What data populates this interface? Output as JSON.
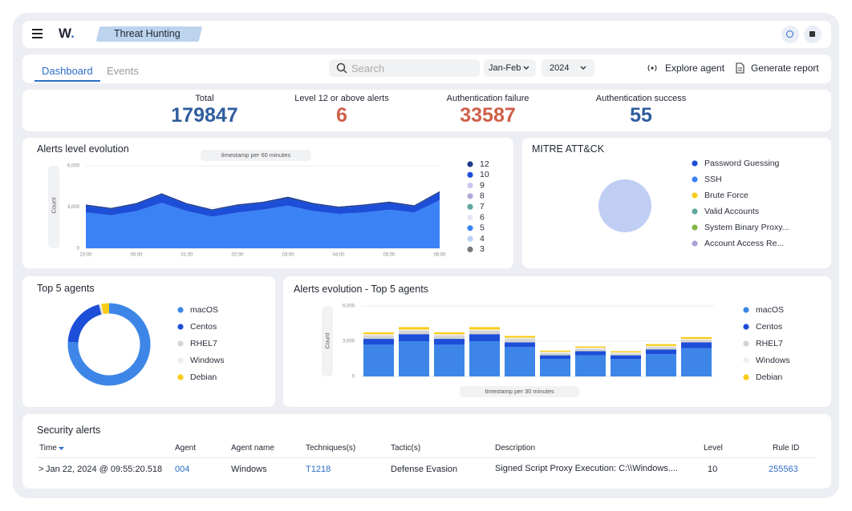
{
  "header": {
    "title": "Threat Hunting"
  },
  "tabs": [
    "Dashboard",
    "Events"
  ],
  "toolbar": {
    "search_placeholder": "Search",
    "period": "Jan-Feb",
    "year": "2024",
    "actions": [
      "Explore agent",
      "Generate report"
    ]
  },
  "stats": [
    {
      "label": "Total",
      "value": 179847
    },
    {
      "label": "Level 12 or above alerts",
      "value": 6
    },
    {
      "label": "Authentication failure",
      "value": 33587
    },
    {
      "label": "Authentication success",
      "value": 55
    }
  ],
  "alerts_level_chart": {
    "type": "area",
    "title": "Alerts level evolution",
    "x_label": "timestamp per 60 minutes",
    "y_label": "Count",
    "categories": [
      "23:00",
      null,
      "00:00",
      null,
      "01:00",
      null,
      "02:00",
      null,
      "03:00",
      null,
      "04:00",
      null,
      "05:00",
      null,
      "06:00"
    ],
    "ylim": [
      0,
      6000
    ],
    "yticks": [
      0,
      {
        "value": 3000,
        "label": "3,000"
      },
      {
        "value": 6000,
        "label": "6,000"
      }
    ],
    "series": [
      {
        "name": "12",
        "color": "#1e3a8a",
        "values": [
          80,
          80,
          90,
          100,
          80,
          80,
          90,
          80,
          100,
          90,
          80,
          80,
          90,
          80,
          100
        ]
      },
      {
        "name": "10",
        "color": "#1d4ed8",
        "values": [
          500,
          450,
          500,
          600,
          500,
          450,
          500,
          500,
          550,
          500,
          450,
          500,
          500,
          450,
          550
        ]
      },
      {
        "name": "9",
        "color": "#c9c8ee",
        "values": [
          0,
          0,
          0,
          0,
          0,
          0,
          0,
          0,
          0,
          0,
          0,
          0,
          0,
          0,
          0
        ]
      },
      {
        "name": "8",
        "color": "#b1a9d9",
        "values": [
          0,
          0,
          0,
          0,
          0,
          0,
          0,
          0,
          0,
          0,
          0,
          0,
          0,
          0,
          0
        ]
      },
      {
        "name": "7",
        "color": "#5fa8a0",
        "values": [
          0,
          0,
          0,
          0,
          0,
          0,
          0,
          0,
          0,
          0,
          0,
          0,
          0,
          0,
          0
        ]
      },
      {
        "name": "6",
        "color": "#e6e4f3",
        "values": [
          0,
          0,
          0,
          0,
          0,
          0,
          0,
          0,
          0,
          0,
          0,
          0,
          0,
          0,
          0
        ]
      },
      {
        "name": "5",
        "color": "#3b82f6",
        "values": [
          2600,
          2400,
          2700,
          3300,
          2700,
          2300,
          2600,
          2800,
          3100,
          2700,
          2500,
          2600,
          2800,
          2600,
          3500
        ]
      },
      {
        "name": "4",
        "color": "#b9d1f5",
        "values": [
          0,
          0,
          0,
          0,
          0,
          0,
          0,
          0,
          0,
          0,
          0,
          0,
          0,
          0,
          0
        ]
      },
      {
        "name": "3",
        "color": "#7a7a7a",
        "values": [
          0,
          0,
          0,
          0,
          0,
          0,
          0,
          0,
          0,
          0,
          0,
          0,
          0,
          0,
          0
        ]
      }
    ]
  },
  "mitre_chart": {
    "type": "pie",
    "title": "MITRE ATT&CK",
    "categories": [
      "Password Guessing",
      "SSH",
      "Brute Force",
      "Valid Accounts",
      "System Binary Proxy...",
      "Account Access  Re..."
    ],
    "values": [
      100,
      0,
      0,
      0,
      0,
      0
    ],
    "colors": [
      "#1d4ed8",
      "#3b82f6",
      "#facc15",
      "#5fa8a0",
      "#84b547",
      "#a9a4d8"
    ]
  },
  "top_agents_chart": {
    "type": "donut",
    "title": "Top 5 agents",
    "categories": [
      "macOS",
      "Centos",
      "RHEL7",
      "Windows",
      "Debian"
    ],
    "values": [
      76,
      20,
      0.5,
      0.5,
      3
    ],
    "colors": [
      "#3d86e8",
      "#1d4ed8",
      "#d4d4d4",
      "#eeeeee",
      "#facc15"
    ]
  },
  "agents_evolution_chart": {
    "type": "stacked_bar",
    "title": "Alerts evolution - Top 5 agents",
    "x_label": "timestamp per 30 minutes",
    "y_label": "Count",
    "categories": [
      null,
      null,
      null,
      null,
      null,
      null,
      null,
      null,
      null,
      null
    ],
    "ylim": [
      0,
      6000
    ],
    "yticks": [
      0,
      {
        "value": 3000,
        "label": "3,000"
      },
      {
        "value": 6000,
        "label": "6,000"
      }
    ],
    "series": [
      {
        "name": "macOS",
        "color": "#3d86e8",
        "values": [
          2700,
          3000,
          2700,
          3000,
          2500,
          1500,
          1800,
          1500,
          1900,
          2400
        ]
      },
      {
        "name": "Centos",
        "color": "#1d4ed8",
        "values": [
          500,
          600,
          500,
          600,
          400,
          300,
          350,
          300,
          400,
          500
        ]
      },
      {
        "name": "RHEL7",
        "color": "#d4d4d4",
        "values": [
          300,
          300,
          300,
          300,
          300,
          200,
          200,
          150,
          200,
          200
        ]
      },
      {
        "name": "Windows",
        "color": "#eeeeee",
        "values": [
          100,
          100,
          100,
          100,
          100,
          100,
          100,
          100,
          100,
          100
        ]
      },
      {
        "name": "Debian",
        "color": "#facc15",
        "values": [
          150,
          200,
          150,
          200,
          150,
          100,
          100,
          100,
          150,
          150
        ]
      }
    ]
  },
  "security_alerts": {
    "title": "Security alerts",
    "columns": [
      "Time",
      "Agent",
      "Agent name",
      "Techniques(s)",
      "Tactic(s)",
      "Description",
      "Level",
      "Rule ID"
    ],
    "rows": [
      [
        "Jan 22, 2024 @ 09:55:20.518",
        "004",
        "Windows",
        "T1218",
        "Defense Evasion",
        "Signed Script Proxy Execution: C:\\\\Windows....",
        10,
        "255563"
      ]
    ]
  }
}
